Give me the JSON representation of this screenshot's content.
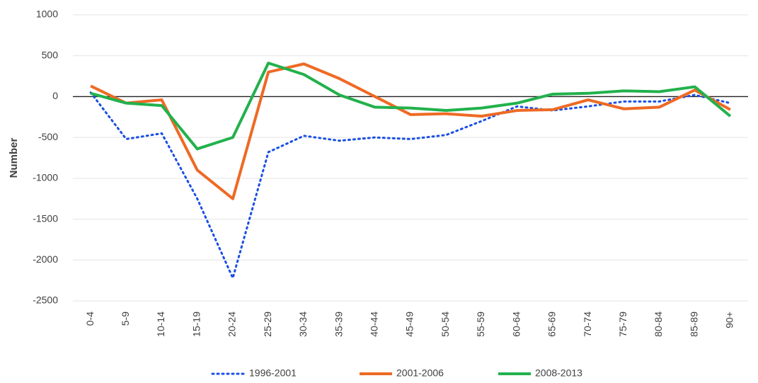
{
  "chart_data": {
    "type": "line",
    "y_label": "Number",
    "categories": [
      "0-4",
      "5-9",
      "10-14",
      "15-19",
      "20-24",
      "25-29",
      "30-34",
      "35-39",
      "40-44",
      "45-49",
      "50-54",
      "55-59",
      "60-64",
      "65-69",
      "70-74",
      "75-79",
      "80-84",
      "85-89",
      "90+"
    ],
    "series": [
      {
        "name": "1996-2001",
        "color": "#1a4fe6",
        "style": "dotted",
        "values": [
          50,
          -520,
          -450,
          -1250,
          -2220,
          -680,
          -480,
          -540,
          -500,
          -520,
          -470,
          -300,
          -120,
          -170,
          -120,
          -60,
          -60,
          20,
          -80
        ]
      },
      {
        "name": "2001-2006",
        "color": "#ee6a24",
        "style": "solid",
        "values": [
          130,
          -80,
          -40,
          -900,
          -1250,
          300,
          400,
          220,
          0,
          -220,
          -210,
          -240,
          -170,
          -160,
          -40,
          -150,
          -130,
          80,
          -160
        ]
      },
      {
        "name": "2008-2013",
        "color": "#22b14c",
        "style": "solid",
        "values": [
          40,
          -80,
          -110,
          -640,
          -500,
          410,
          270,
          20,
          -130,
          -140,
          -170,
          -140,
          -80,
          30,
          40,
          70,
          60,
          120,
          -240
        ]
      }
    ],
    "ylim": [
      -2500,
      1000
    ],
    "yticks": [
      -2500,
      -2000,
      -1500,
      -1000,
      -500,
      0,
      500,
      1000
    ],
    "grid": true,
    "legend": "bottom"
  }
}
